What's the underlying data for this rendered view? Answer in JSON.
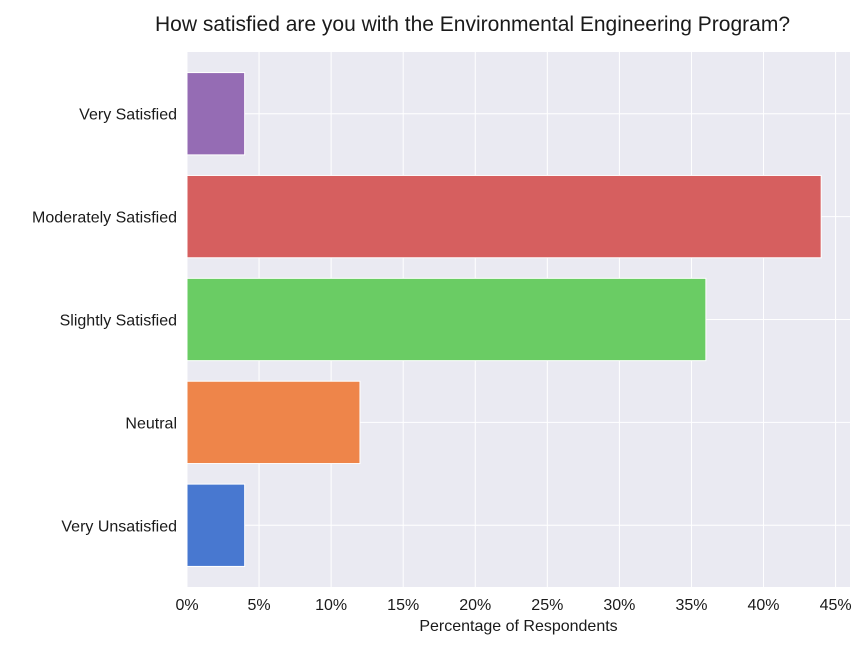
{
  "chart_data": {
    "type": "bar",
    "orientation": "horizontal",
    "title": "How satisfied are you with the Environmental Engineering Program?",
    "xlabel": "Percentage of Respondents",
    "ylabel": "",
    "categories": [
      "Very Unsatisfied",
      "Neutral",
      "Slightly Satisfied",
      "Moderately Satisfied",
      "Very Satisfied"
    ],
    "values": [
      4,
      12,
      36,
      44,
      4
    ],
    "colors": [
      "#4878d0",
      "#ee854a",
      "#6acc64",
      "#d65f5f",
      "#956cb4"
    ],
    "xlim": [
      0,
      46
    ],
    "xticks": [
      0,
      5,
      10,
      15,
      20,
      25,
      30,
      35,
      40,
      45
    ],
    "xtick_labels": [
      "0%",
      "5%",
      "10%",
      "15%",
      "20%",
      "25%",
      "30%",
      "35%",
      "40%",
      "45%"
    ],
    "grid": true,
    "background": "#eaeaf2"
  }
}
